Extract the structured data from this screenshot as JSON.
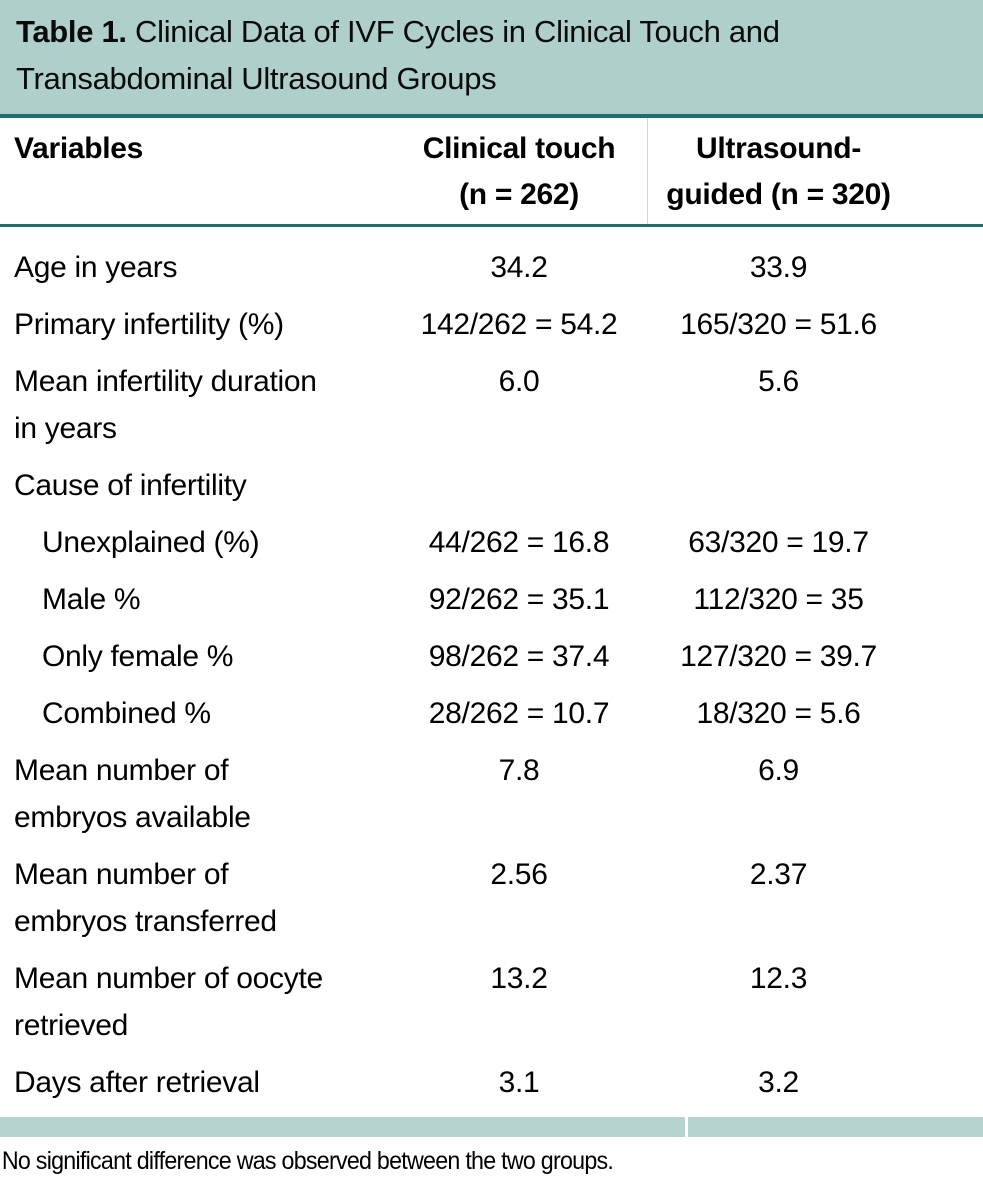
{
  "title": {
    "label": "Table 1.",
    "text": " Clinical Data of IVF Cycles in Clinical Touch and Transabdominal Ultrasound Groups"
  },
  "columns": {
    "variables": "Variables",
    "clinical_touch": "Clinical touch\n(n = 262)",
    "ultrasound": "Ultrasound-\nguided (n = 320)"
  },
  "rows": [
    {
      "label": "Age in years",
      "clinical_touch": "34.2",
      "ultrasound": "33.9"
    },
    {
      "label": "Primary infertility (%)",
      "clinical_touch": "142/262 = 54.2",
      "ultrasound": "165/320 = 51.6"
    },
    {
      "label": "Mean infertility duration\nin years",
      "clinical_touch": "6.0",
      "ultrasound": "5.6"
    },
    {
      "label": "Cause of infertility",
      "clinical_touch": "",
      "ultrasound": ""
    },
    {
      "label": "Unexplained (%)",
      "clinical_touch": "44/262 = 16.8",
      "ultrasound": "63/320 = 19.7"
    },
    {
      "label": "Male %",
      "clinical_touch": "92/262 = 35.1",
      "ultrasound": "112/320 = 35"
    },
    {
      "label": "Only female %",
      "clinical_touch": "98/262 = 37.4",
      "ultrasound": "127/320 = 39.7"
    },
    {
      "label": "Combined %",
      "clinical_touch": "28/262 = 10.7",
      "ultrasound": "18/320 = 5.6"
    },
    {
      "label": "Mean number of\nembryos available",
      "clinical_touch": "7.8",
      "ultrasound": "6.9"
    },
    {
      "label": "Mean number of\nembryos transferred",
      "clinical_touch": "2.56",
      "ultrasound": "2.37"
    },
    {
      "label": "Mean number of oocyte\nretrieved",
      "clinical_touch": "13.2",
      "ultrasound": "12.3"
    },
    {
      "label": "Days after retrieval",
      "clinical_touch": "3.1",
      "ultrasound": "3.2"
    }
  ],
  "footnote": "No significant difference was observed between the two groups.",
  "colors": {
    "title_band": "#aecfca",
    "bottom_band": "#b7d3cf",
    "rule": "#1e6e6c",
    "text": "#000000"
  }
}
